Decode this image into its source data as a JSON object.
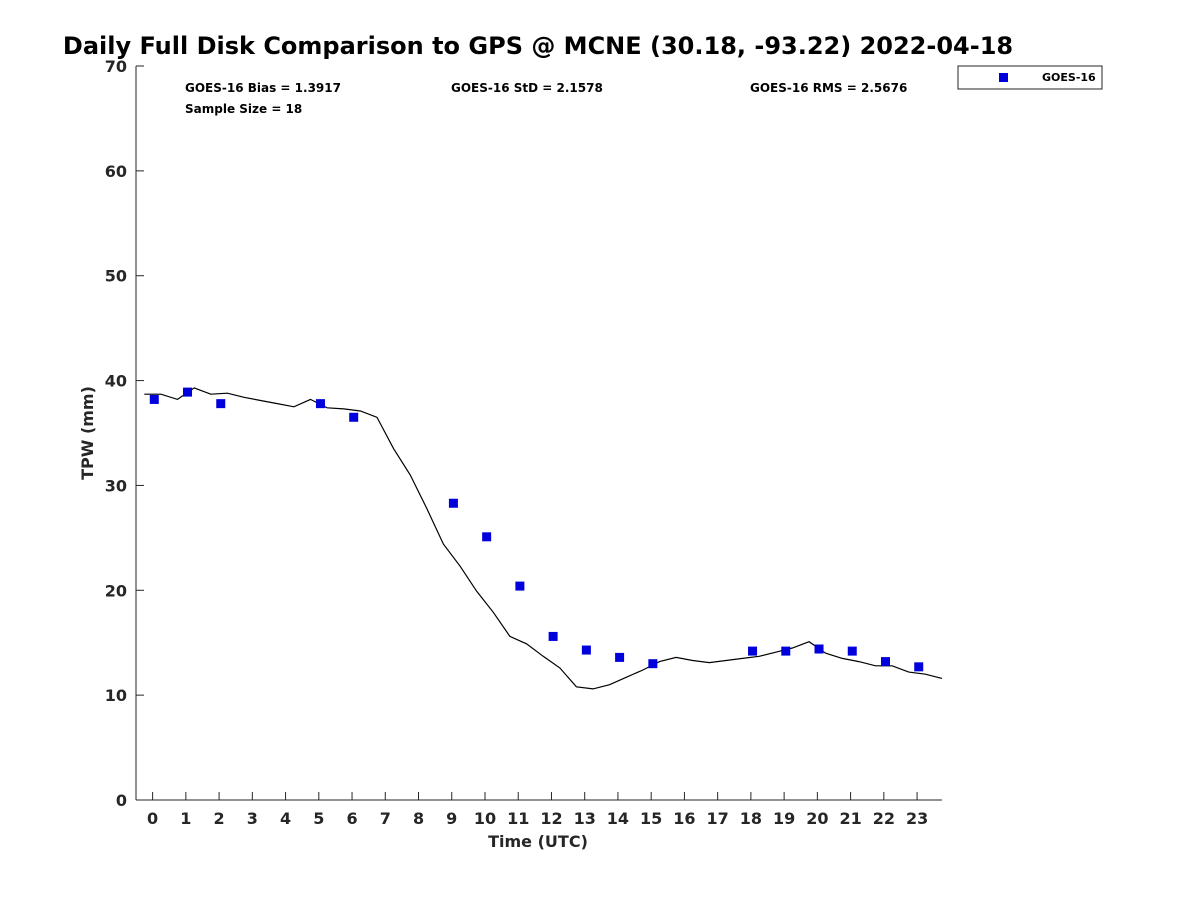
{
  "chart_data": {
    "type": "scatter",
    "title": "Daily Full Disk Comparison to GPS @ MCNE (30.18, -93.22) 2022-04-18",
    "xlabel": "Time (UTC)",
    "ylabel": "TPW (mm)",
    "xlim": [
      -0.5,
      23.75
    ],
    "ylim": [
      0,
      70
    ],
    "x_ticks": [
      0,
      1,
      2,
      3,
      4,
      5,
      6,
      7,
      8,
      9,
      10,
      11,
      12,
      13,
      14,
      15,
      16,
      17,
      18,
      19,
      20,
      21,
      22,
      23
    ],
    "y_ticks": [
      0,
      10,
      20,
      30,
      40,
      50,
      60,
      70
    ],
    "grid": false,
    "legend_placement": "top-right outside",
    "stats": {
      "bias": "GOES-16 Bias = 1.3917",
      "std": "GOES-16 StD = 2.1578",
      "rms": "GOES-16 RMS = 2.5676",
      "sample_size": "Sample Size = 18"
    },
    "series": [
      {
        "name": "GOES-16",
        "kind": "scatter",
        "color": "#0000dd",
        "x": [
          0.05,
          1.05,
          2.05,
          5.05,
          6.05,
          9.05,
          10.05,
          11.05,
          12.05,
          13.05,
          14.05,
          15.05,
          18.05,
          19.05,
          20.05,
          21.05,
          22.05,
          23.05
        ],
        "y": [
          38.2,
          38.9,
          37.8,
          37.8,
          36.5,
          28.3,
          25.1,
          20.4,
          15.6,
          14.3,
          13.6,
          13.0,
          14.2,
          14.2,
          14.4,
          14.2,
          13.2,
          12.7
        ]
      },
      {
        "kind": "line",
        "color": "#000000",
        "x": [
          -0.25,
          0.25,
          0.75,
          1.25,
          1.75,
          2.25,
          2.75,
          3.25,
          3.75,
          4.25,
          4.75,
          5.0,
          5.25,
          5.75,
          6.25,
          6.75,
          7.25,
          7.75,
          8.25,
          8.75,
          9.25,
          9.75,
          10.25,
          10.75,
          11.25,
          11.75,
          12.25,
          12.75,
          13.25,
          13.75,
          14.25,
          14.75,
          15.25,
          15.75,
          16.25,
          16.75,
          17.25,
          17.75,
          18.25,
          18.75,
          19.25,
          19.75,
          20.25,
          20.75,
          21.25,
          21.75,
          22.25,
          22.75,
          23.25,
          23.75
        ],
        "y": [
          38.7,
          38.7,
          38.2,
          39.3,
          38.7,
          38.8,
          38.4,
          38.1,
          37.8,
          37.5,
          38.2,
          37.8,
          37.4,
          37.3,
          37.1,
          36.5,
          33.5,
          31.0,
          27.8,
          24.4,
          22.3,
          19.9,
          17.9,
          15.6,
          14.9,
          13.7,
          12.6,
          10.8,
          10.6,
          11.0,
          11.7,
          12.4,
          13.2,
          13.6,
          13.3,
          13.1,
          13.3,
          13.5,
          13.7,
          14.1,
          14.5,
          15.1,
          14.0,
          13.5,
          13.2,
          12.8,
          12.8,
          12.2,
          12.0,
          11.6
        ]
      }
    ]
  }
}
